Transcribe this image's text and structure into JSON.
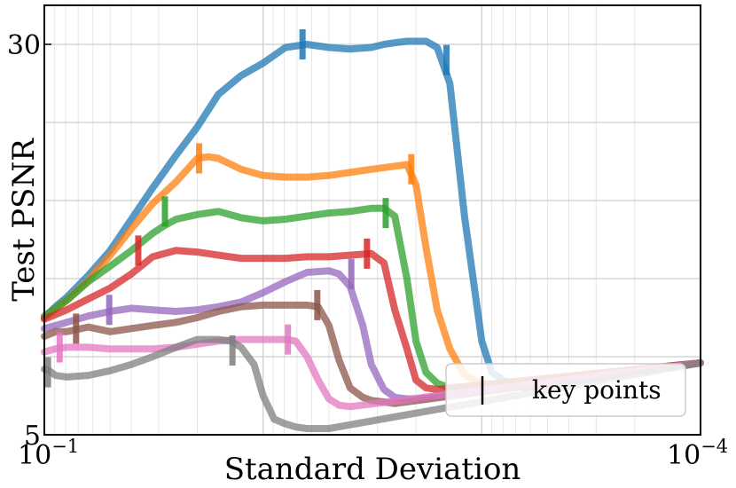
{
  "chart_data": {
    "type": "line",
    "title": "",
    "xlabel": "Standard Deviation",
    "ylabel": "Test PSNR",
    "xscale": "log-reversed",
    "xlim": [
      0.1,
      0.0001
    ],
    "ylim": [
      5,
      32.5
    ],
    "x_ticks": [
      {
        "value": 0.1,
        "base": "10",
        "exp": "−1"
      },
      {
        "value": 0.0001,
        "base": "10",
        "exp": "−4"
      }
    ],
    "y_ticks": [
      {
        "value": 5,
        "label": "5"
      },
      {
        "value": 30,
        "label": "30"
      }
    ],
    "grid": true,
    "legend": {
      "position": "bottom-right",
      "entries": [
        {
          "label": "key points",
          "marker": "vertical-bar",
          "color": "#000000"
        }
      ]
    },
    "series": [
      {
        "name": "blue",
        "color": "#1f77b4",
        "x": [
          0.1,
          0.089,
          0.079,
          0.063,
          0.05,
          0.04,
          0.032,
          0.025,
          0.02,
          0.016,
          0.0126,
          0.01,
          0.0079,
          0.0063,
          0.005,
          0.004,
          0.0032,
          0.0028,
          0.0025,
          0.0022,
          0.002,
          0.0018,
          0.0016,
          0.0014,
          0.0012,
          0.001,
          0.0009,
          0.0008,
          0.0007,
          0.00063,
          0.0001
        ],
        "y": [
          12.5,
          13.2,
          13.8,
          15.2,
          16.8,
          18.8,
          20.8,
          22.9,
          24.7,
          26.8,
          28.0,
          28.8,
          29.8,
          30.0,
          29.8,
          29.7,
          29.8,
          30.0,
          30.1,
          30.2,
          30.2,
          30.2,
          29.8,
          27.5,
          19.0,
          11.0,
          9.0,
          8.5,
          8.2,
          8.0,
          9.6
        ],
        "key_x": [
          0.0066,
          0.00145
        ],
        "key_y": [
          30.0,
          29.0
        ]
      },
      {
        "name": "orange",
        "color": "#ff7f0e",
        "x": [
          0.1,
          0.079,
          0.063,
          0.05,
          0.04,
          0.032,
          0.025,
          0.02,
          0.0178,
          0.016,
          0.0126,
          0.01,
          0.0079,
          0.0063,
          0.005,
          0.004,
          0.0032,
          0.0025,
          0.0022,
          0.002,
          0.0018,
          0.0016,
          0.0014,
          0.0012,
          0.001,
          0.0008,
          0.0001
        ],
        "y": [
          12.5,
          13.6,
          14.9,
          16.5,
          18.2,
          19.8,
          21.2,
          22.7,
          22.8,
          22.7,
          22.0,
          21.6,
          21.5,
          21.5,
          21.6,
          21.8,
          22.0,
          22.2,
          22.3,
          21.0,
          17.0,
          13.0,
          10.5,
          8.8,
          8.3,
          8.2,
          9.6
        ],
        "key_x": [
          0.0196,
          0.0021
        ],
        "key_y": [
          22.7,
          22.0
        ]
      },
      {
        "name": "green",
        "color": "#2ca02c",
        "x": [
          0.1,
          0.079,
          0.063,
          0.05,
          0.04,
          0.032,
          0.0282,
          0.025,
          0.02,
          0.016,
          0.0126,
          0.01,
          0.0079,
          0.0063,
          0.005,
          0.004,
          0.0032,
          0.0028,
          0.0025,
          0.0022,
          0.002,
          0.0018,
          0.0016,
          0.0014,
          0.0001
        ],
        "y": [
          12.6,
          13.6,
          14.8,
          15.8,
          16.8,
          17.9,
          18.4,
          18.8,
          19.1,
          19.3,
          18.9,
          18.7,
          18.8,
          19.0,
          19.2,
          19.3,
          19.5,
          19.5,
          19.0,
          15.0,
          11.0,
          9.0,
          8.3,
          8.0,
          9.6
        ],
        "key_x": [
          0.0281,
          0.00275
        ],
        "key_y": [
          19.3,
          19.2
        ]
      },
      {
        "name": "red",
        "color": "#d62728",
        "x": [
          0.1,
          0.079,
          0.063,
          0.05,
          0.04,
          0.032,
          0.025,
          0.02,
          0.016,
          0.0126,
          0.01,
          0.0079,
          0.0063,
          0.005,
          0.004,
          0.0032,
          0.0028,
          0.0025,
          0.0022,
          0.002,
          0.0018,
          0.0016,
          0.0001
        ],
        "y": [
          12.4,
          13.0,
          13.7,
          14.4,
          15.3,
          16.4,
          16.8,
          16.7,
          16.5,
          16.3,
          16.3,
          16.3,
          16.4,
          16.4,
          16.5,
          16.6,
          16.0,
          13.0,
          10.5,
          8.5,
          8.0,
          7.9,
          9.6
        ],
        "key_x": [
          0.0372,
          0.00335
        ],
        "key_y": [
          16.8,
          16.6
        ]
      },
      {
        "name": "purple",
        "color": "#9467bd",
        "x": [
          0.1,
          0.079,
          0.063,
          0.05,
          0.04,
          0.032,
          0.025,
          0.02,
          0.016,
          0.0126,
          0.01,
          0.0079,
          0.0063,
          0.005,
          0.0045,
          0.004,
          0.0035,
          0.0032,
          0.0028,
          0.0025,
          0.0022,
          0.002,
          0.0001
        ],
        "y": [
          11.8,
          12.2,
          12.6,
          12.9,
          13.1,
          13.0,
          12.9,
          13.0,
          13.2,
          13.5,
          14.1,
          14.8,
          15.4,
          15.5,
          15.3,
          14.5,
          12.0,
          9.5,
          7.9,
          7.4,
          7.3,
          7.3,
          9.6
        ],
        "key_x": [
          0.0505,
          0.00395
        ],
        "key_y": [
          13.0,
          15.3
        ]
      },
      {
        "name": "brown",
        "color": "#8c564b",
        "x": [
          0.1,
          0.089,
          0.079,
          0.063,
          0.05,
          0.04,
          0.032,
          0.025,
          0.02,
          0.016,
          0.0126,
          0.01,
          0.0079,
          0.0063,
          0.0056,
          0.005,
          0.0045,
          0.004,
          0.0035,
          0.0032,
          0.0028,
          0.0025,
          0.0001
        ],
        "y": [
          11.3,
          11.6,
          11.6,
          11.9,
          11.6,
          11.8,
          12.0,
          12.2,
          12.5,
          12.9,
          13.2,
          13.3,
          13.3,
          13.3,
          13.2,
          12.0,
          9.8,
          8.0,
          7.4,
          7.2,
          7.1,
          7.0,
          9.6
        ],
        "key_x": [
          0.0716,
          0.00565
        ],
        "key_y": [
          11.8,
          13.3
        ]
      },
      {
        "name": "pink",
        "color": "#e377c2",
        "x": [
          0.1,
          0.089,
          0.079,
          0.071,
          0.063,
          0.05,
          0.04,
          0.032,
          0.025,
          0.02,
          0.016,
          0.0126,
          0.01,
          0.0079,
          0.0071,
          0.0063,
          0.0056,
          0.005,
          0.0045,
          0.004,
          0.0001
        ],
        "y": [
          10.3,
          10.5,
          10.6,
          10.6,
          10.6,
          10.5,
          10.5,
          10.5,
          10.6,
          10.8,
          11.0,
          11.1,
          11.1,
          11.1,
          11.0,
          10.0,
          8.5,
          7.3,
          6.9,
          6.8,
          9.6
        ],
        "key_x": [
          0.0851,
          0.0077
        ],
        "key_y": [
          10.6,
          11.1
        ]
      },
      {
        "name": "gray",
        "color": "#7f7f7f",
        "x": [
          0.1,
          0.095,
          0.089,
          0.079,
          0.063,
          0.05,
          0.04,
          0.032,
          0.025,
          0.02,
          0.016,
          0.0141,
          0.0126,
          0.011,
          0.01,
          0.0089,
          0.0079,
          0.0071,
          0.0063,
          0.005,
          0.0001
        ],
        "y": [
          9.2,
          9.1,
          8.8,
          8.7,
          8.8,
          9.1,
          9.5,
          10.0,
          10.6,
          11.1,
          11.1,
          11.0,
          10.6,
          9.5,
          7.5,
          6.0,
          5.7,
          5.5,
          5.4,
          5.4,
          9.6
        ],
        "key_x": [
          0.0962,
          0.0138
        ],
        "key_y": [
          9.0,
          10.4
        ]
      }
    ]
  }
}
